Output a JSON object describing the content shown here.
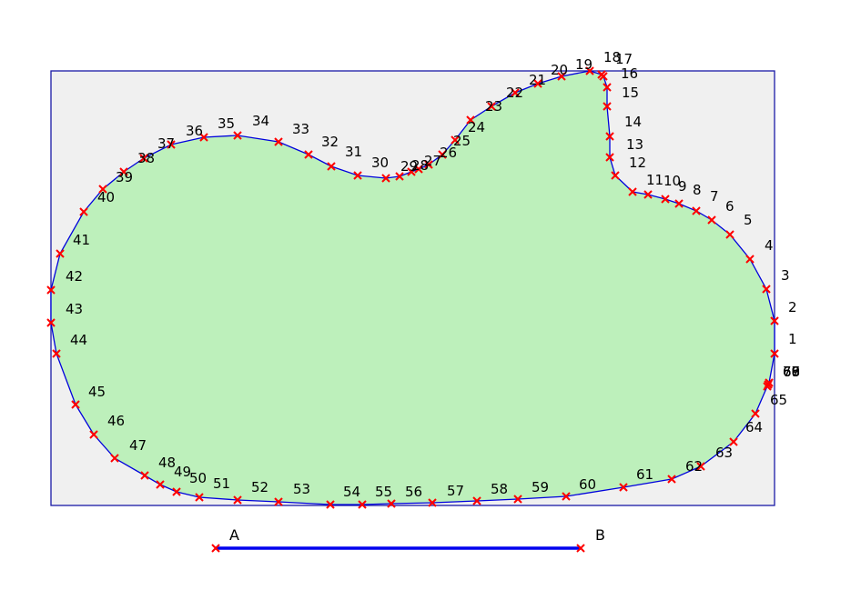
{
  "boundary_labels": [
    "1",
    "2",
    "3",
    "4",
    "5",
    "6",
    "7",
    "8",
    "9",
    "10",
    "11",
    "12",
    "13",
    "14",
    "15",
    "16",
    "17",
    "18",
    "19",
    "20",
    "21",
    "22",
    "23",
    "24",
    "25",
    "26",
    "27",
    "28",
    "29",
    "30",
    "31",
    "32",
    "33",
    "34",
    "35",
    "36",
    "37",
    "38",
    "39",
    "40",
    "41",
    "42",
    "43",
    "44",
    "45",
    "46",
    "47",
    "48",
    "49",
    "50",
    "51",
    "52",
    "53",
    "54",
    "55",
    "56",
    "57",
    "58",
    "59",
    "60",
    "61",
    "62",
    "63",
    "64",
    "65",
    "66",
    "67",
    "68",
    "69",
    "70"
  ],
  "segment": {
    "start_label": "A",
    "end_label": "B"
  },
  "colors": {
    "frame_fill": "#f0f0f0",
    "frame_stroke": "#1a1aa6",
    "region_fill": "#bdf0bb",
    "boundary_stroke": "#0000dd",
    "marker": "#ff0000",
    "segment": "#0000ee"
  }
}
